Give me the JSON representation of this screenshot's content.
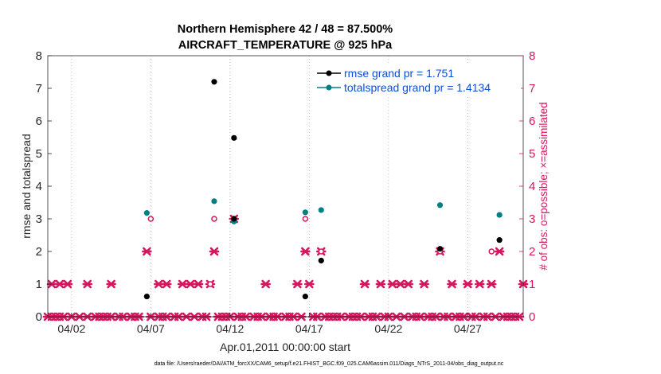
{
  "chart_data": {
    "type": "scatter",
    "title_line1": "Northern Hemisphere 42 / 48 = 87.500%",
    "title_line2": "AIRCRAFT_TEMPERATURE @ 925 hPa",
    "xlabel": "Apr.01,2011 00:00:00 start",
    "ylabel_left": "rmse and totalspread",
    "ylabel_right": "# of obs: o=possible; ×=assimilated",
    "footer": "data file: /Users/raeder/DAI/ATM_forcXX/CAM6_setup/f.e21.FHIST_BGC.f09_025.CAM6assim.011/Diags_NTrS_2011-04/obs_diag_output.nc",
    "xlim": [
      0.5,
      30.5
    ],
    "ylim": [
      0,
      8
    ],
    "y_ticks": [
      "0",
      "1",
      "2",
      "3",
      "4",
      "5",
      "6",
      "7",
      "8"
    ],
    "x_ticks": [
      {
        "label": "04/02",
        "day": 2
      },
      {
        "label": "04/07",
        "day": 7
      },
      {
        "label": "04/12",
        "day": 12
      },
      {
        "label": "04/17",
        "day": 17
      },
      {
        "label": "04/22",
        "day": 22
      },
      {
        "label": "04/27",
        "day": 27
      }
    ],
    "legend": {
      "rmse": "rmse grand pr = 1.751",
      "spread": "totalspread grand pr = 1.4134"
    },
    "colors": {
      "rmse": "#000000",
      "spread": "#008080",
      "obs": "#d6165f",
      "legend_text": "#0a4fd8",
      "axis": "#262626",
      "grid": "#b0b0b0"
    },
    "rmse": [
      {
        "day": 6.75,
        "value": 0.62
      },
      {
        "day": 11.0,
        "value": 7.2
      },
      {
        "day": 12.25,
        "value": 5.48
      },
      {
        "day": 12.25,
        "value": 3.0
      },
      {
        "day": 16.75,
        "value": 0.62
      },
      {
        "day": 17.75,
        "value": 1.72
      },
      {
        "day": 25.25,
        "value": 2.08
      },
      {
        "day": 29.0,
        "value": 2.35
      }
    ],
    "spread": [
      {
        "day": 6.75,
        "value": 3.18
      },
      {
        "day": 11.0,
        "value": 3.54
      },
      {
        "day": 12.25,
        "value": 2.92
      },
      {
        "day": 16.75,
        "value": 3.2
      },
      {
        "day": 17.75,
        "value": 3.27
      },
      {
        "day": 25.25,
        "value": 3.42
      },
      {
        "day": 29.0,
        "value": 3.12
      }
    ],
    "obs_possible": [
      {
        "day": 7.0,
        "value": 3
      },
      {
        "day": 10.75,
        "value": 1
      },
      {
        "day": 11.0,
        "value": 3
      },
      {
        "day": 12.25,
        "value": 3
      },
      {
        "day": 16.75,
        "value": 3
      },
      {
        "day": 17.75,
        "value": 2
      },
      {
        "day": 25.25,
        "value": 2
      },
      {
        "day": 28.5,
        "value": 2
      }
    ],
    "obs_assimilated": [
      {
        "day": 0.75,
        "value": 1
      },
      {
        "day": 1.25,
        "value": 1
      },
      {
        "day": 1.75,
        "value": 1
      },
      {
        "day": 3.0,
        "value": 1
      },
      {
        "day": 4.5,
        "value": 1
      },
      {
        "day": 6.75,
        "value": 2
      },
      {
        "day": 7.5,
        "value": 1
      },
      {
        "day": 8.0,
        "value": 1
      },
      {
        "day": 9.0,
        "value": 1
      },
      {
        "day": 9.5,
        "value": 1
      },
      {
        "day": 10.0,
        "value": 1
      },
      {
        "day": 10.75,
        "value": 1
      },
      {
        "day": 11.0,
        "value": 2
      },
      {
        "day": 12.25,
        "value": 3
      },
      {
        "day": 14.25,
        "value": 1
      },
      {
        "day": 16.25,
        "value": 1
      },
      {
        "day": 16.75,
        "value": 2
      },
      {
        "day": 17.0,
        "value": 1
      },
      {
        "day": 17.75,
        "value": 2
      },
      {
        "day": 20.5,
        "value": 1
      },
      {
        "day": 21.5,
        "value": 1
      },
      {
        "day": 22.25,
        "value": 1
      },
      {
        "day": 22.75,
        "value": 1
      },
      {
        "day": 23.25,
        "value": 1
      },
      {
        "day": 24.25,
        "value": 1
      },
      {
        "day": 25.25,
        "value": 2
      },
      {
        "day": 26.0,
        "value": 1
      },
      {
        "day": 27.0,
        "value": 1
      },
      {
        "day": 27.75,
        "value": 1
      },
      {
        "day": 28.5,
        "value": 1
      },
      {
        "day": 29.0,
        "value": 2
      },
      {
        "day": 30.5,
        "value": 1
      },
      {
        "day": 0.5,
        "value": 0
      },
      {
        "day": 0.75,
        "value": 0
      },
      {
        "day": 1.0,
        "value": 0
      },
      {
        "day": 1.25,
        "value": 0
      },
      {
        "day": 1.5,
        "value": 0
      },
      {
        "day": 2.0,
        "value": 0
      },
      {
        "day": 2.5,
        "value": 0
      },
      {
        "day": 3.0,
        "value": 0
      },
      {
        "day": 3.5,
        "value": 0
      },
      {
        "day": 3.75,
        "value": 0
      },
      {
        "day": 4.0,
        "value": 0
      },
      {
        "day": 4.25,
        "value": 0
      },
      {
        "day": 4.5,
        "value": 0
      },
      {
        "day": 5.0,
        "value": 0
      },
      {
        "day": 5.25,
        "value": 0
      },
      {
        "day": 5.75,
        "value": 0
      },
      {
        "day": 6.0,
        "value": 0
      },
      {
        "day": 6.25,
        "value": 0
      },
      {
        "day": 7.0,
        "value": 0
      },
      {
        "day": 7.5,
        "value": 0
      },
      {
        "day": 7.75,
        "value": 0
      },
      {
        "day": 8.0,
        "value": 0
      },
      {
        "day": 8.5,
        "value": 0
      },
      {
        "day": 8.75,
        "value": 0
      },
      {
        "day": 9.25,
        "value": 0
      },
      {
        "day": 9.75,
        "value": 0
      },
      {
        "day": 10.25,
        "value": 0
      },
      {
        "day": 10.5,
        "value": 0
      },
      {
        "day": 11.25,
        "value": 0
      },
      {
        "day": 11.5,
        "value": 0
      },
      {
        "day": 11.75,
        "value": 0
      },
      {
        "day": 12.0,
        "value": 0
      },
      {
        "day": 12.5,
        "value": 0
      },
      {
        "day": 12.75,
        "value": 0
      },
      {
        "day": 13.0,
        "value": 0
      },
      {
        "day": 13.5,
        "value": 0
      },
      {
        "day": 13.75,
        "value": 0
      },
      {
        "day": 14.0,
        "value": 0
      },
      {
        "day": 14.5,
        "value": 0
      },
      {
        "day": 14.75,
        "value": 0
      },
      {
        "day": 15.0,
        "value": 0
      },
      {
        "day": 15.5,
        "value": 0
      },
      {
        "day": 15.75,
        "value": 0
      },
      {
        "day": 16.0,
        "value": 0
      },
      {
        "day": 16.5,
        "value": 0
      },
      {
        "day": 17.25,
        "value": 0
      },
      {
        "day": 17.5,
        "value": 0
      },
      {
        "day": 18.0,
        "value": 0
      },
      {
        "day": 18.25,
        "value": 0
      },
      {
        "day": 18.5,
        "value": 0
      },
      {
        "day": 18.75,
        "value": 0
      },
      {
        "day": 19.0,
        "value": 0
      },
      {
        "day": 19.5,
        "value": 0
      },
      {
        "day": 19.75,
        "value": 0
      },
      {
        "day": 20.0,
        "value": 0
      },
      {
        "day": 20.25,
        "value": 0
      },
      {
        "day": 20.75,
        "value": 0
      },
      {
        "day": 21.0,
        "value": 0
      },
      {
        "day": 21.25,
        "value": 0
      },
      {
        "day": 21.75,
        "value": 0
      },
      {
        "day": 22.0,
        "value": 0
      },
      {
        "day": 22.5,
        "value": 0
      },
      {
        "day": 23.0,
        "value": 0
      },
      {
        "day": 23.5,
        "value": 0
      },
      {
        "day": 23.75,
        "value": 0
      },
      {
        "day": 24.0,
        "value": 0
      },
      {
        "day": 24.5,
        "value": 0
      },
      {
        "day": 24.75,
        "value": 0
      },
      {
        "day": 25.0,
        "value": 0
      },
      {
        "day": 25.5,
        "value": 0
      },
      {
        "day": 25.75,
        "value": 0
      },
      {
        "day": 26.25,
        "value": 0
      },
      {
        "day": 26.5,
        "value": 0
      },
      {
        "day": 26.75,
        "value": 0
      },
      {
        "day": 27.25,
        "value": 0
      },
      {
        "day": 27.5,
        "value": 0
      },
      {
        "day": 28.0,
        "value": 0
      },
      {
        "day": 28.25,
        "value": 0
      },
      {
        "day": 28.75,
        "value": 0
      },
      {
        "day": 29.25,
        "value": 0
      },
      {
        "day": 29.5,
        "value": 0
      },
      {
        "day": 29.75,
        "value": 0
      },
      {
        "day": 30.0,
        "value": 0
      },
      {
        "day": 30.25,
        "value": 0
      }
    ]
  }
}
